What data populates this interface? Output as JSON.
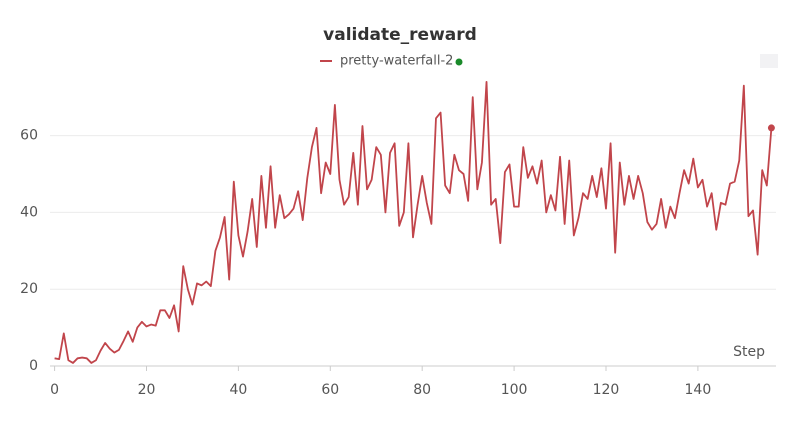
{
  "chart_data": {
    "type": "line",
    "title": "validate_reward",
    "xlabel": "Step",
    "x": [
      0,
      1,
      2,
      3,
      4,
      5,
      6,
      7,
      8,
      9,
      10,
      11,
      12,
      13,
      14,
      15,
      16,
      17,
      18,
      19,
      20,
      21,
      22,
      23,
      24,
      25,
      26,
      27,
      28,
      29,
      30,
      31,
      32,
      33,
      34,
      35,
      36,
      37,
      38,
      39,
      40,
      41,
      42,
      43,
      44,
      45,
      46,
      47,
      48,
      49,
      50,
      51,
      52,
      53,
      54,
      55,
      56,
      57,
      58,
      59,
      60,
      61,
      62,
      63,
      64,
      65,
      66,
      67,
      68,
      69,
      70,
      71,
      72,
      73,
      74,
      75,
      76,
      77,
      78,
      79,
      80,
      81,
      82,
      83,
      84,
      85,
      86,
      87,
      88,
      89,
      90,
      91,
      92,
      93,
      94,
      95,
      96,
      97,
      98,
      99,
      100,
      101,
      102,
      103,
      104,
      105,
      106,
      107,
      108,
      109,
      110,
      111,
      112,
      113,
      114,
      115,
      116,
      117,
      118,
      119,
      120,
      121,
      122,
      123,
      124,
      125,
      126,
      127,
      128,
      129,
      130,
      131,
      132,
      133,
      134,
      135,
      136,
      137,
      138,
      139,
      140,
      141,
      142,
      143,
      144,
      145,
      146,
      147,
      148,
      149,
      150,
      151,
      152,
      153,
      154,
      155,
      156
    ],
    "series": [
      {
        "name": "pretty-waterfall-2",
        "color": "#c1454b",
        "values": [
          2,
          1.8,
          8.5,
          1.5,
          0.8,
          2,
          2.2,
          2,
          0.8,
          1.5,
          4,
          6,
          4.5,
          3.5,
          4.2,
          6.5,
          9,
          6.3,
          10,
          11.5,
          10.3,
          10.8,
          10.5,
          14.5,
          14.5,
          12.5,
          15.8,
          9,
          26,
          20,
          16,
          21.5,
          21,
          22,
          20.8,
          30,
          33.5,
          38.8,
          22.5,
          48,
          34,
          28.5,
          35,
          43.5,
          31,
          49.5,
          36,
          52,
          36,
          44.5,
          38.5,
          39.5,
          41,
          45.5,
          38,
          49,
          57,
          62,
          45,
          53,
          50,
          68,
          48.5,
          42,
          44,
          55.5,
          42,
          62.5,
          46,
          48.5,
          57,
          55,
          40,
          55.5,
          58,
          36.5,
          40,
          58,
          33.5,
          42,
          49.5,
          42.5,
          37,
          64.5,
          66,
          47,
          45,
          55,
          51,
          50,
          43,
          70,
          46,
          53,
          74,
          42,
          43.5,
          32,
          50.5,
          52.5,
          41.5,
          41.5,
          57,
          49,
          52,
          47.5,
          53.5,
          40,
          44.5,
          40.5,
          54.5,
          37,
          53.5,
          34,
          38.5,
          45,
          43.5,
          49.5,
          44,
          51.5,
          41,
          58,
          29.5,
          53,
          42,
          49.5,
          43.5,
          49.5,
          45,
          37.5,
          35.5,
          37,
          43.5,
          36,
          41.5,
          38.5,
          45,
          51,
          47.5,
          54,
          46.5,
          48.5,
          41.5,
          45,
          35.5,
          42.5,
          42,
          47.5,
          48,
          53.5,
          73,
          39,
          40.5,
          29,
          51,
          47,
          62
        ]
      }
    ],
    "xlim": [
      -1,
      157
    ],
    "ylim": [
      0,
      75
    ],
    "xticks": [
      0,
      20,
      40,
      60,
      80,
      100,
      120,
      140
    ],
    "yticks": [
      0,
      20,
      40,
      60
    ],
    "grid": true
  }
}
